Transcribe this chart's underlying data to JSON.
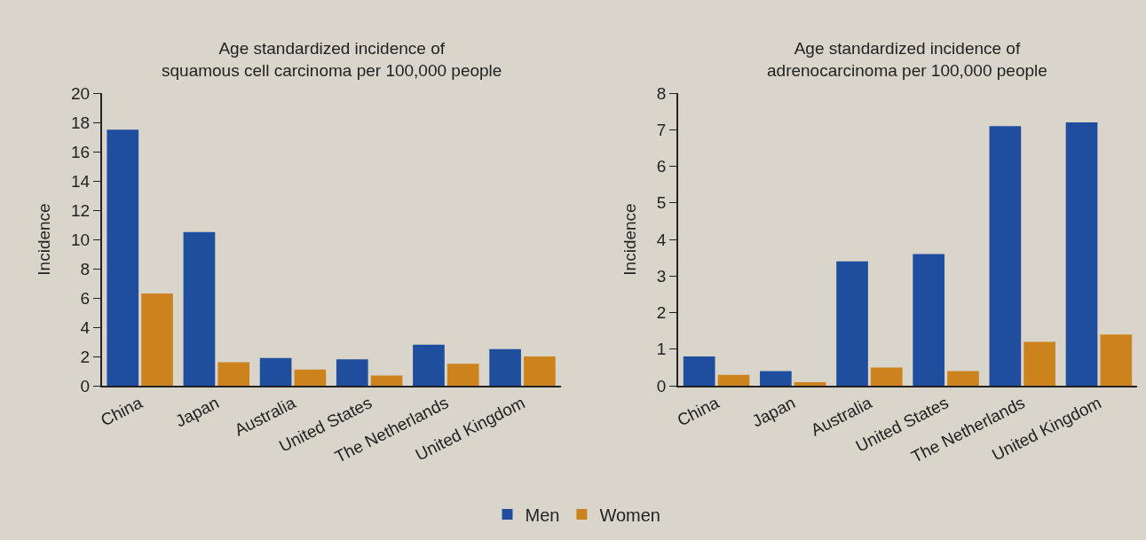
{
  "chart_data": [
    {
      "type": "bar",
      "title": "Age standardized incidence of\nsquamous cell carcinoma per 100,000 people",
      "ylabel": "Incidence",
      "categories": [
        "China",
        "Japan",
        "Australia",
        "United States",
        "The Netherlands",
        "United Kingdom"
      ],
      "series": [
        {
          "name": "Men",
          "color": "#1f4e9f",
          "values": [
            17.5,
            10.5,
            1.9,
            1.8,
            2.8,
            2.5
          ]
        },
        {
          "name": "Women",
          "color": "#cd831d",
          "values": [
            6.3,
            1.6,
            1.1,
            0.7,
            1.5,
            2.0
          ]
        }
      ],
      "ylim": [
        0,
        20
      ],
      "yticks": [
        0,
        2,
        4,
        6,
        8,
        10,
        12,
        14,
        16,
        18,
        20
      ],
      "grid": false,
      "legend": "bottom"
    },
    {
      "type": "bar",
      "title": "Age standardized incidence of\nadrenocarcinoma per 100,000 people",
      "ylabel": "Incidence",
      "categories": [
        "China",
        "Japan",
        "Australia",
        "United States",
        "The Netherlands",
        "United Kingdom"
      ],
      "series": [
        {
          "name": "Men",
          "color": "#1f4e9f",
          "values": [
            0.8,
            0.4,
            3.4,
            3.6,
            7.1,
            7.2
          ]
        },
        {
          "name": "Women",
          "color": "#cd831d",
          "values": [
            0.3,
            0.1,
            0.5,
            0.4,
            1.2,
            1.4
          ]
        }
      ],
      "ylim": [
        0,
        8
      ],
      "yticks": [
        0,
        1,
        2,
        3,
        4,
        5,
        6,
        7,
        8
      ],
      "grid": false,
      "legend": "bottom"
    }
  ]
}
